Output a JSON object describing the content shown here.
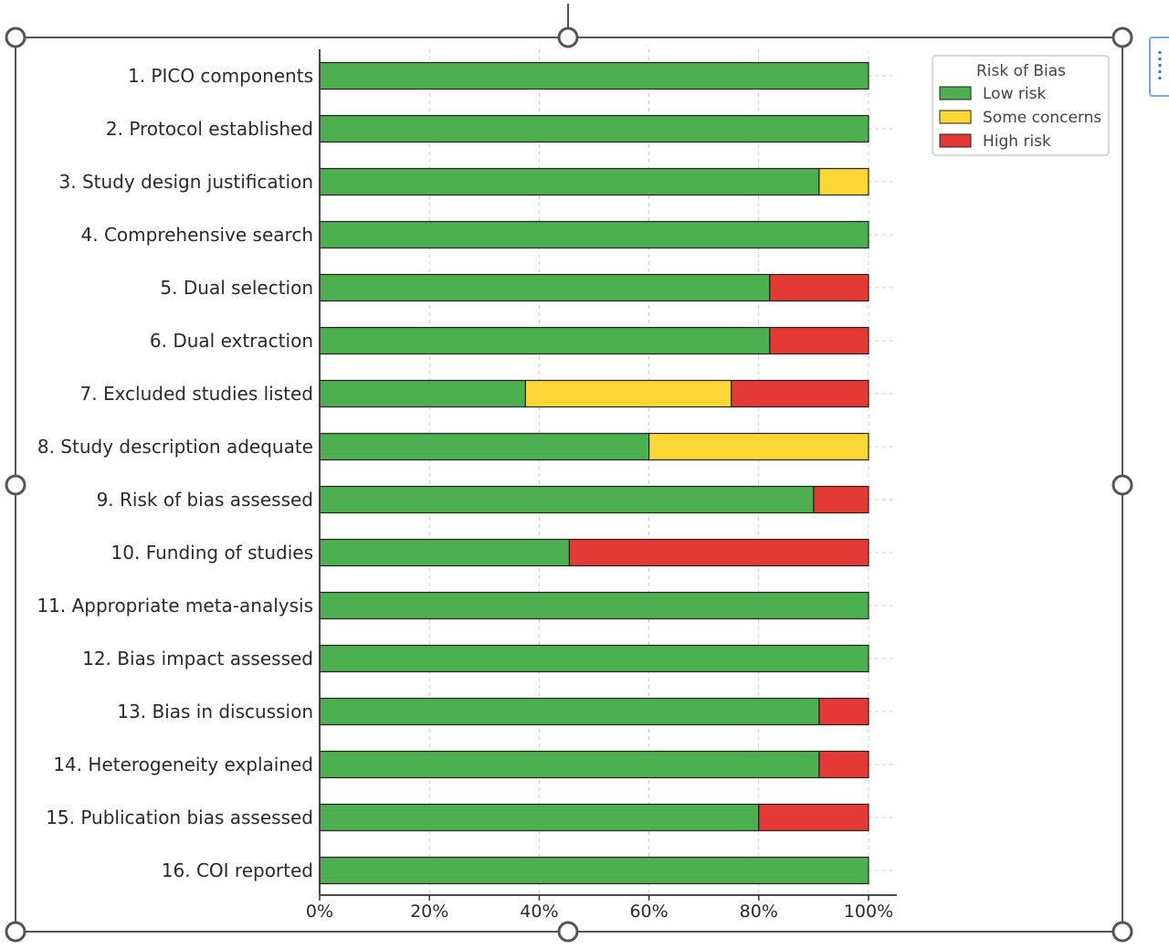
{
  "chart_data": {
    "type": "bar",
    "orientation": "horizontal",
    "stacked": true,
    "categories": [
      "1. PICO components",
      "2. Protocol established",
      "3. Study design justification",
      "4. Comprehensive search",
      "5. Dual selection",
      "6. Dual extraction",
      "7. Excluded studies listed",
      "8. Study description adequate",
      "9. Risk of bias assessed",
      "10. Funding of studies",
      "11. Appropriate meta-analysis",
      "12. Bias impact assessed",
      "13. Bias in discussion",
      "14. Heterogeneity explained",
      "15. Publication bias assessed",
      "16. COI reported"
    ],
    "series": [
      {
        "name": "Low risk",
        "color": "#4caf50",
        "values": [
          100,
          100,
          91,
          100,
          82,
          82,
          37.5,
          60,
          90,
          45.5,
          100,
          100,
          91,
          91,
          80,
          100
        ]
      },
      {
        "name": "Some concerns",
        "color": "#fdd835",
        "values": [
          0,
          0,
          9,
          0,
          0,
          0,
          37.5,
          40,
          0,
          0,
          0,
          0,
          0,
          0,
          0,
          0
        ]
      },
      {
        "name": "High risk",
        "color": "#e53935",
        "values": [
          0,
          0,
          0,
          0,
          18,
          18,
          25,
          0,
          10,
          54.5,
          0,
          0,
          9,
          9,
          20,
          0
        ]
      }
    ],
    "xticks": [
      "0%",
      "20%",
      "40%",
      "60%",
      "80%",
      "100%"
    ],
    "xlim": [
      0,
      100
    ],
    "grid": "vertical dashed",
    "legend": {
      "title": "Risk of Bias",
      "placement": "top-right"
    }
  },
  "colors": {
    "bar_edge": "#222222",
    "grid": "#d0d0d0",
    "axis": "#333333",
    "selection_frame": "#555555"
  }
}
